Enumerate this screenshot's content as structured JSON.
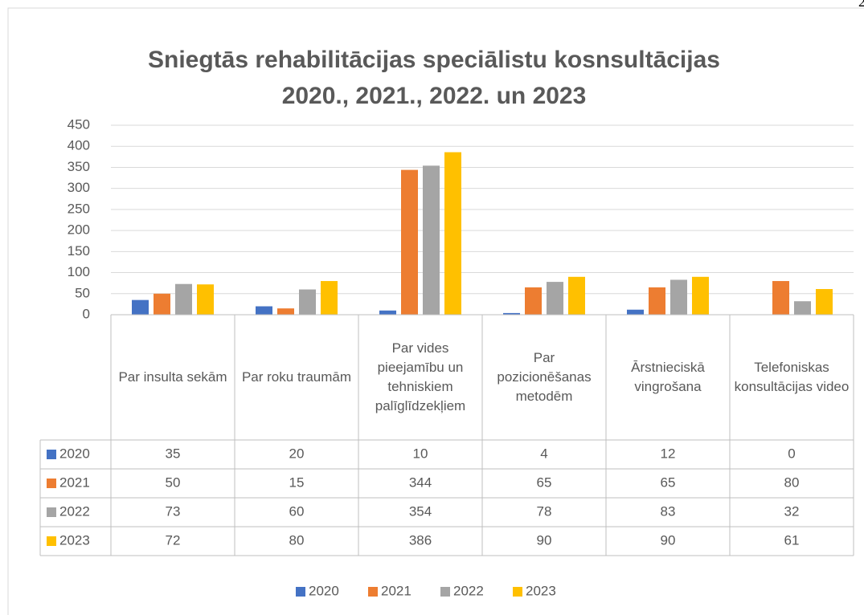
{
  "page_number": "2",
  "chart_data": {
    "type": "bar",
    "title": [
      "Sniegtās rehabilitācijas speciālistu kosnsultācijas",
      "2020., 2021., 2022. un 2023"
    ],
    "categories": [
      "Par insulta sekām",
      "Par roku traumām",
      "Par vides pieejamību un tehniskiem palīglīdzekļiem",
      "Par pozicionēšanas metodēm",
      "Ārstnieciskā vingrošana",
      "Telefoniskas konsultācijas video"
    ],
    "series": [
      {
        "name": "2020",
        "color": "#4472c4",
        "values": [
          35,
          20,
          10,
          4,
          12,
          0
        ]
      },
      {
        "name": "2021",
        "color": "#ed7d31",
        "values": [
          50,
          15,
          344,
          65,
          65,
          80
        ]
      },
      {
        "name": "2022",
        "color": "#a5a5a5",
        "values": [
          73,
          60,
          354,
          78,
          83,
          32
        ]
      },
      {
        "name": "2023",
        "color": "#ffc000",
        "values": [
          72,
          80,
          386,
          90,
          90,
          61
        ]
      }
    ],
    "ylim": [
      0,
      450
    ],
    "yticks": [
      0,
      50,
      100,
      150,
      200,
      250,
      300,
      350,
      400,
      450
    ],
    "grid": true,
    "legend": "bottom",
    "data_table": true
  }
}
